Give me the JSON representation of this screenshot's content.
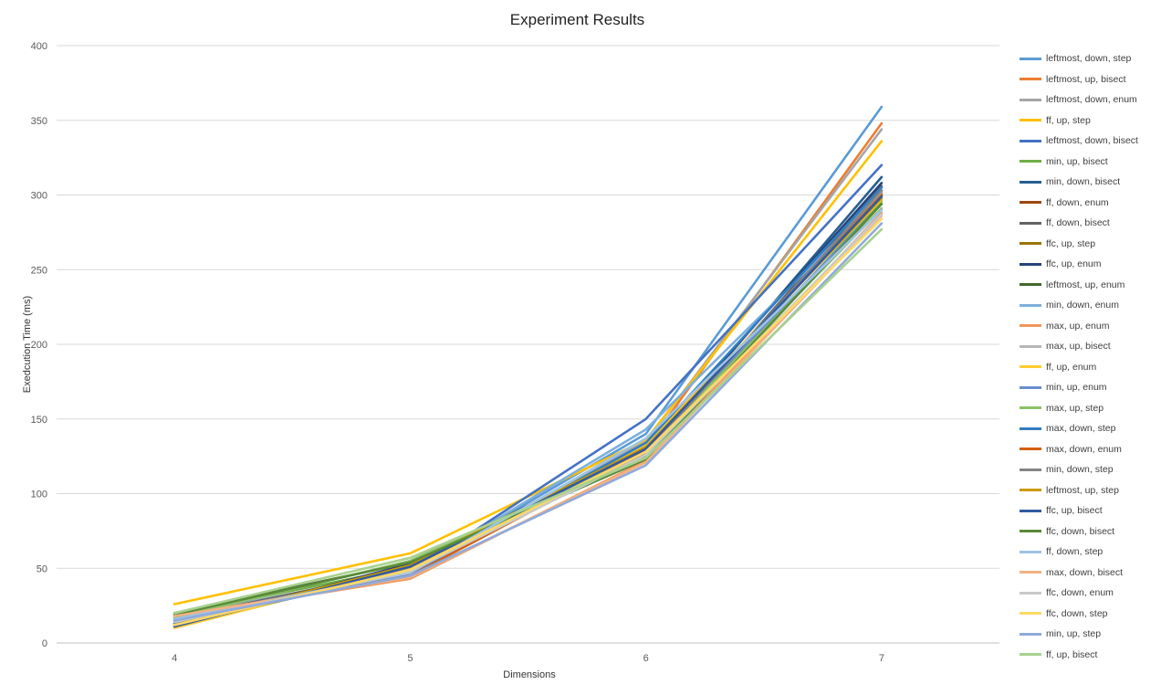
{
  "chart_data": {
    "type": "line",
    "title": "Experiment Results",
    "xlabel": "Dimensions",
    "ylabel": "Exedcution Time (ms)",
    "categories": [
      "4",
      "5",
      "6",
      "7"
    ],
    "ylim": [
      0,
      400
    ],
    "yticks": [
      0,
      50,
      100,
      150,
      200,
      250,
      300,
      350,
      400
    ],
    "grid": true,
    "legend_position": "right",
    "series": [
      {
        "name": "leftmost, down, step",
        "color": "#5B9BD5",
        "values": [
          18,
          48,
          140,
          359
        ]
      },
      {
        "name": "leftmost, up, bisect",
        "color": "#ED7D31",
        "values": [
          15,
          46,
          131,
          348
        ]
      },
      {
        "name": "leftmost, down, enum",
        "color": "#A5A5A5",
        "values": [
          17,
          49,
          135,
          344
        ]
      },
      {
        "name": "ff, up, step",
        "color": "#FFC000",
        "values": [
          26,
          60,
          136,
          336
        ]
      },
      {
        "name": "leftmost, down, bisect",
        "color": "#4472C4",
        "values": [
          13,
          47,
          150,
          320
        ]
      },
      {
        "name": "min, up, bisect",
        "color": "#70AD47",
        "values": [
          19,
          51,
          125,
          296
        ]
      },
      {
        "name": "min, down, bisect",
        "color": "#255E91",
        "values": [
          14,
          50,
          128,
          312
        ]
      },
      {
        "name": "ff, down, enum",
        "color": "#9E480E",
        "values": [
          12,
          52,
          130,
          301
        ]
      },
      {
        "name": "ff, down, bisect",
        "color": "#636363",
        "values": [
          16,
          50,
          126,
          306
        ]
      },
      {
        "name": "ffc, up, step",
        "color": "#997300",
        "values": [
          13,
          51,
          132,
          298
        ]
      },
      {
        "name": "ffc, up, enum",
        "color": "#264478",
        "values": [
          11,
          53,
          131,
          308
        ]
      },
      {
        "name": "leftmost, up, enum",
        "color": "#43682B",
        "values": [
          20,
          54,
          124,
          303
        ]
      },
      {
        "name": "min, down, enum",
        "color": "#7CAFDD",
        "values": [
          16,
          48,
          143,
          299
        ]
      },
      {
        "name": "max, up, enum",
        "color": "#F1975A",
        "values": [
          18,
          43,
          122,
          288
        ]
      },
      {
        "name": "max, up, bisect",
        "color": "#B7B7B7",
        "values": [
          15,
          47,
          127,
          302
        ]
      },
      {
        "name": "ff, up, enum",
        "color": "#FFCD33",
        "values": [
          10,
          50,
          133,
          297
        ]
      },
      {
        "name": "min, up, enum",
        "color": "#698ED0",
        "values": [
          14,
          46,
          130,
          294
        ]
      },
      {
        "name": "max, up, step",
        "color": "#8CC168",
        "values": [
          17,
          55,
          128,
          291
        ]
      },
      {
        "name": "max, down, step",
        "color": "#327DC2",
        "values": [
          13,
          47,
          134,
          305
        ]
      },
      {
        "name": "max, down, enum",
        "color": "#D26012",
        "values": [
          16,
          45,
          129,
          300
        ]
      },
      {
        "name": "min, down, step",
        "color": "#848484",
        "values": [
          15,
          49,
          127,
          303
        ]
      },
      {
        "name": "leftmost, up, step",
        "color": "#CC9A00",
        "values": [
          12,
          52,
          131,
          298
        ]
      },
      {
        "name": "ffc, up, bisect",
        "color": "#335AA1",
        "values": [
          11,
          51,
          130,
          299
        ]
      },
      {
        "name": "ffc, down, bisect",
        "color": "#5A8A39",
        "values": [
          19,
          54,
          123,
          294
        ]
      },
      {
        "name": "ff, down, step",
        "color": "#9DC3E6",
        "values": [
          16,
          47,
          137,
          290
        ]
      },
      {
        "name": "max, down, bisect",
        "color": "#F4B183",
        "values": [
          18,
          44,
          121,
          286
        ]
      },
      {
        "name": "ffc, down, enum",
        "color": "#C9C9C9",
        "values": [
          14,
          48,
          126,
          287
        ]
      },
      {
        "name": "ffc, down, step",
        "color": "#FFD966",
        "values": [
          12,
          49,
          128,
          284
        ]
      },
      {
        "name": "min, up, step",
        "color": "#8FAADC",
        "values": [
          15,
          45,
          119,
          281
        ]
      },
      {
        "name": "ff, up, bisect",
        "color": "#A9D18E",
        "values": [
          20,
          57,
          124,
          277
        ]
      }
    ]
  }
}
